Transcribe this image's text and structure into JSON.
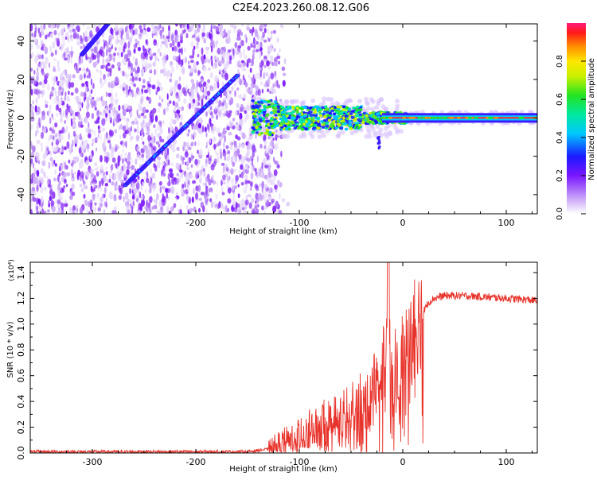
{
  "page_title": "C2E4.2023.260.08.12.G06",
  "chart_data": [
    {
      "type": "heatmap",
      "xlabel": "Height of straight line (km)",
      "ylabel": "Frequency (Hz)",
      "xlim": [
        -360,
        130
      ],
      "ylim": [
        -50,
        49
      ],
      "x_ticks": [
        -300,
        -200,
        -100,
        0,
        100
      ],
      "y_ticks": [
        -40,
        -20,
        0,
        20,
        40
      ],
      "colorbar": {
        "label": "Normalized spectral amplitude",
        "range": [
          0,
          1
        ],
        "ticks": [
          0.0,
          0.2,
          0.4,
          0.6,
          0.8
        ]
      },
      "features": [
        {
          "kind": "diagonal streak",
          "x": [
            -268,
            -160
          ],
          "y": [
            -35,
            22
          ]
        },
        {
          "kind": "diagonal streak",
          "x": [
            -310,
            -285
          ],
          "y": [
            33,
            49
          ]
        },
        {
          "kind": "horizontal band",
          "x": [
            -145,
            130
          ],
          "y": [
            0,
            0
          ]
        }
      ]
    },
    {
      "type": "line",
      "xlabel": "Height of straight line (km)",
      "ylabel": "SNR (10 * v/v)",
      "y_multiplier": "(x10⁴)",
      "xlim": [
        -360,
        130
      ],
      "ylim": [
        0,
        1.48
      ],
      "x_ticks": [
        -300,
        -200,
        -100,
        0,
        100
      ],
      "y_ticks": [
        "0.0",
        "0.2",
        "0.4",
        "0.6",
        "0.8",
        "1.0",
        "1.2",
        "1.4"
      ],
      "series": [
        {
          "color": "#e8332b",
          "x": [
            -360,
            -300,
            -200,
            -150,
            -130,
            -115,
            -100,
            -80,
            -60,
            -45,
            -35,
            -30,
            -25,
            -20,
            -15,
            -10,
            -5,
            0,
            10,
            20,
            25,
            30,
            40,
            60,
            80,
            100,
            120,
            130
          ],
          "y": [
            0.01,
            0.01,
            0.01,
            0.01,
            0.03,
            0.08,
            0.14,
            0.2,
            0.25,
            0.3,
            0.4,
            0.5,
            0.6,
            0.75,
            0.7,
            0.68,
            0.62,
            0.7,
            0.95,
            1.1,
            1.17,
            1.2,
            1.22,
            1.22,
            1.21,
            1.2,
            1.19,
            1.18
          ]
        }
      ]
    }
  ]
}
